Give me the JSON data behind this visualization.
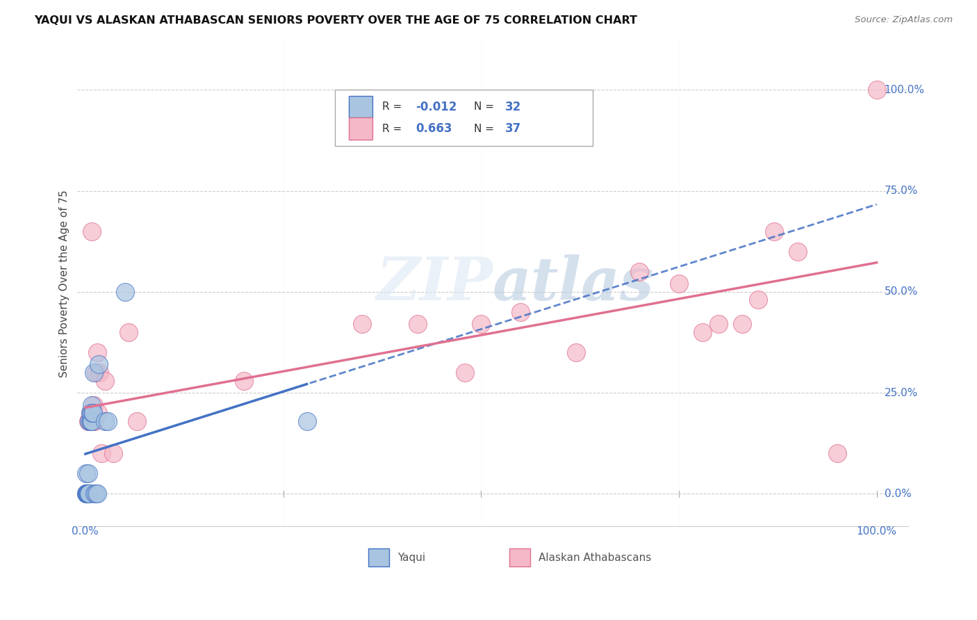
{
  "title": "YAQUI VS ALASKAN ATHABASCAN SENIORS POVERTY OVER THE AGE OF 75 CORRELATION CHART",
  "source": "Source: ZipAtlas.com",
  "ylabel": "Seniors Poverty Over the Age of 75",
  "ytick_labels": [
    "0.0%",
    "25.0%",
    "50.0%",
    "75.0%",
    "100.0%"
  ],
  "ytick_values": [
    0.0,
    0.25,
    0.5,
    0.75,
    1.0
  ],
  "xtick_labels": [
    "0.0%",
    "100.0%"
  ],
  "xtick_values": [
    0.0,
    1.0
  ],
  "legend_label1": "Yaqui",
  "legend_label2": "Alaskan Athabascans",
  "r1": "-0.012",
  "n1": "32",
  "r2": "0.663",
  "n2": "37",
  "color_yaqui": "#a8c4e0",
  "color_athabascan": "#f4b8c8",
  "color_yaqui_line": "#4472c4",
  "color_athabascan_line": "#e07090",
  "color_tick_label": "#4472c4",
  "watermark_color": "#ccdcee",
  "background_color": "#ffffff",
  "grid_color": "#cccccc",
  "yaqui_x": [
    0.001,
    0.001,
    0.001,
    0.002,
    0.002,
    0.002,
    0.003,
    0.003,
    0.003,
    0.004,
    0.004,
    0.004,
    0.005,
    0.005,
    0.005,
    0.006,
    0.006,
    0.007,
    0.007,
    0.008,
    0.008,
    0.009,
    0.01,
    0.011,
    0.012,
    0.013,
    0.015,
    0.017,
    0.025,
    0.028,
    0.05,
    0.28
  ],
  "yaqui_y": [
    0.0,
    0.0,
    0.05,
    0.0,
    0.0,
    0.0,
    0.0,
    0.0,
    0.0,
    0.0,
    0.0,
    0.05,
    0.0,
    0.0,
    0.18,
    0.18,
    0.2,
    0.18,
    0.2,
    0.18,
    0.22,
    0.2,
    0.2,
    0.3,
    0.0,
    0.0,
    0.0,
    0.32,
    0.18,
    0.18,
    0.5,
    0.18
  ],
  "athabascan_x": [
    0.002,
    0.003,
    0.004,
    0.005,
    0.006,
    0.007,
    0.008,
    0.009,
    0.01,
    0.011,
    0.012,
    0.013,
    0.015,
    0.016,
    0.018,
    0.02,
    0.025,
    0.035,
    0.055,
    0.065,
    0.2,
    0.35,
    0.42,
    0.48,
    0.5,
    0.55,
    0.62,
    0.7,
    0.75,
    0.78,
    0.8,
    0.83,
    0.85,
    0.87,
    0.9,
    0.95,
    1.0
  ],
  "athabascan_y": [
    0.0,
    0.0,
    0.18,
    0.18,
    0.2,
    0.18,
    0.65,
    0.2,
    0.18,
    0.22,
    0.18,
    0.3,
    0.35,
    0.2,
    0.3,
    0.1,
    0.28,
    0.1,
    0.4,
    0.18,
    0.28,
    0.42,
    0.42,
    0.3,
    0.42,
    0.45,
    0.35,
    0.55,
    0.52,
    0.4,
    0.42,
    0.42,
    0.48,
    0.65,
    0.6,
    0.1,
    1.0
  ]
}
